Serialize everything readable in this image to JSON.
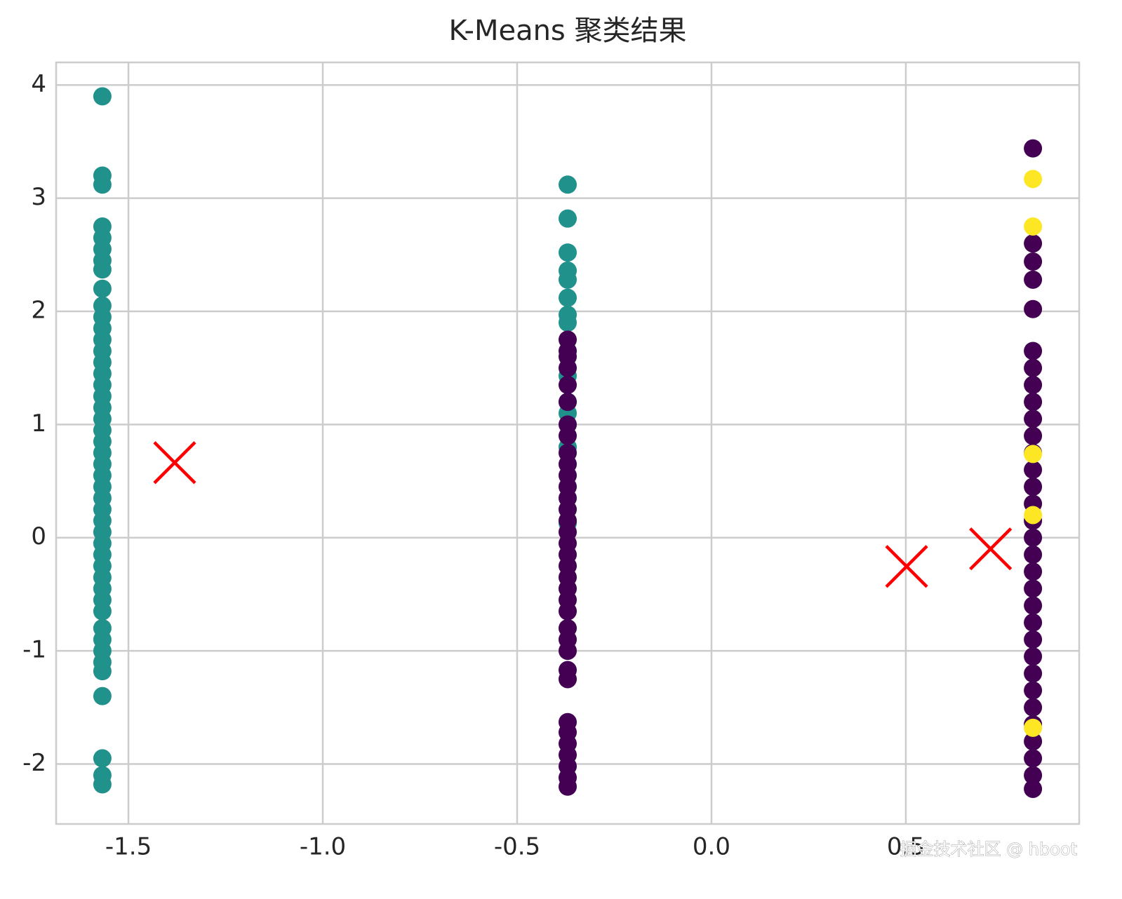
{
  "chart_data": {
    "type": "scatter",
    "title": "K-Means 聚类结果",
    "watermark": "掘金技术社区 @ hboot",
    "xlim": [
      -1.686,
      0.946
    ],
    "ylim": [
      -2.53,
      4.2
    ],
    "xticks": [
      -1.5,
      {
        "value": -1.0,
        "label": "-1.0"
      },
      -0.5,
      {
        "value": 0.0,
        "label": "0.0"
      },
      0.5
    ],
    "yticks": [
      -2,
      -1,
      0,
      1,
      2,
      3,
      4
    ],
    "grid": true,
    "series": [
      {
        "color": "#21918c",
        "marker": "o",
        "x": [
          -1.567,
          -1.567,
          -1.567,
          -1.567,
          -1.567,
          -1.567,
          -1.567,
          -1.567,
          -1.567,
          -1.567,
          -1.567,
          -1.567,
          -1.567,
          -1.567,
          -1.567,
          -1.567,
          -1.567,
          -1.567,
          -1.567,
          -1.567,
          -1.567,
          -1.567,
          -1.567,
          -1.567,
          -1.567,
          -1.567,
          -1.567,
          -1.567,
          -1.567,
          -1.567,
          -1.567,
          -1.567,
          -1.567,
          -1.567,
          -1.567,
          -1.567,
          -1.567,
          -1.567,
          -1.567,
          -1.567,
          -1.567,
          -1.567,
          -1.567,
          -1.567,
          -1.567,
          -1.567
        ],
        "values": [
          3.9,
          3.2,
          3.12,
          2.75,
          2.65,
          2.55,
          2.45,
          2.37,
          2.2,
          2.05,
          1.95,
          1.85,
          1.75,
          1.65,
          1.55,
          1.45,
          1.35,
          1.25,
          1.15,
          1.05,
          0.95,
          0.85,
          0.75,
          0.65,
          0.55,
          0.45,
          0.35,
          0.25,
          0.15,
          0.05,
          -0.05,
          -0.15,
          -0.25,
          -0.35,
          -0.45,
          -0.55,
          -0.65,
          -0.8,
          -0.9,
          -1.0,
          -1.1,
          -1.18,
          -1.4,
          -1.95,
          -2.1,
          -2.18
        ]
      },
      {
        "color": "#21918c",
        "marker": "o",
        "x": [
          -0.37,
          -0.37,
          -0.37,
          -0.37,
          -0.37,
          -0.37,
          -0.37,
          -0.37,
          -0.37,
          -0.37,
          -0.37,
          -0.37,
          -0.37
        ],
        "values": [
          3.12,
          2.82,
          2.52,
          2.36,
          2.28,
          2.12,
          1.97,
          1.9,
          1.43,
          1.2,
          1.1,
          0.8,
          0.13
        ]
      },
      {
        "color": "#440154",
        "marker": "o",
        "x": [
          -0.37,
          -0.37,
          -0.37,
          -0.37,
          -0.37,
          -0.37,
          -0.37,
          -0.37,
          -0.37,
          -0.37,
          -0.37,
          -0.37,
          -0.37,
          -0.37,
          -0.37,
          -0.37,
          -0.37,
          -0.37,
          -0.37,
          -0.37,
          -0.37,
          -0.37,
          -0.37,
          -0.37,
          -0.37,
          -0.37,
          -0.37,
          -0.37,
          -0.37,
          -0.37,
          -0.37,
          -0.37,
          -0.37,
          -0.37,
          -0.37
        ],
        "values": [
          1.75,
          1.65,
          1.6,
          1.5,
          1.35,
          1.2,
          1.0,
          0.9,
          0.75,
          0.65,
          0.55,
          0.45,
          0.35,
          0.25,
          0.15,
          0.05,
          -0.05,
          -0.15,
          -0.25,
          -0.35,
          -0.45,
          -0.55,
          -0.65,
          -0.8,
          -0.9,
          -1.0,
          -1.17,
          -1.25,
          -1.63,
          -1.72,
          -1.82,
          -1.92,
          -2.02,
          -2.12,
          -2.2
        ]
      },
      {
        "color": "#440154",
        "marker": "o",
        "x": [
          0.827,
          0.827,
          0.827,
          0.827,
          0.827,
          0.827,
          0.827,
          0.827,
          0.827,
          0.827,
          0.827,
          0.827,
          0.827,
          0.827,
          0.827,
          0.827,
          0.827,
          0.827,
          0.827,
          0.827,
          0.827,
          0.827,
          0.827,
          0.827,
          0.827,
          0.827,
          0.827,
          0.827,
          0.827,
          0.827,
          0.827,
          0.827
        ],
        "values": [
          3.44,
          2.6,
          2.44,
          2.28,
          2.02,
          1.65,
          1.5,
          1.35,
          1.2,
          1.05,
          0.9,
          0.75,
          0.6,
          0.45,
          0.3,
          0.15,
          0.0,
          -0.15,
          -0.3,
          -0.45,
          -0.6,
          -0.75,
          -0.9,
          -1.05,
          -1.2,
          -1.35,
          -1.5,
          -1.8,
          -1.95,
          -2.1,
          -2.22,
          -1.65
        ]
      },
      {
        "color": "#fde725",
        "marker": "o",
        "x": [
          0.827,
          0.827,
          0.827,
          0.827,
          0.827
        ],
        "values": [
          3.17,
          2.75,
          0.74,
          0.2,
          -1.68
        ]
      },
      {
        "color": "#ff0000",
        "marker": "x",
        "x": [
          -1.381,
          0.502,
          0.718
        ],
        "values": [
          0.663,
          -0.254,
          -0.099
        ]
      }
    ]
  }
}
